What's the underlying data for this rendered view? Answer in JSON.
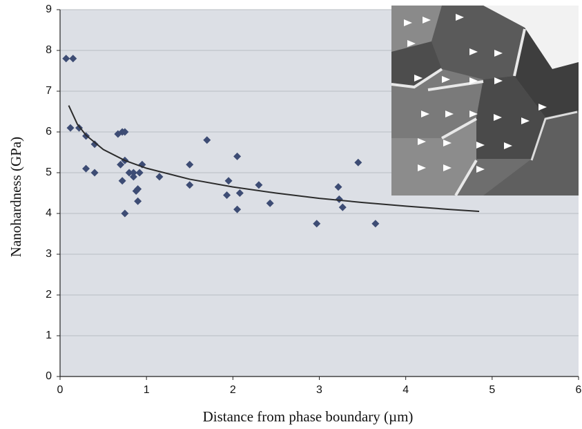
{
  "chart_data": {
    "type": "scatter",
    "x_label": "Distance from phase boundary (µm)",
    "y_label": "Nanohardness (GPa)",
    "xlim": [
      0,
      6
    ],
    "xticks": [
      0,
      1,
      2,
      3,
      4,
      5,
      6
    ],
    "ylim": [
      0,
      9
    ],
    "yticks": [
      0,
      1,
      2,
      3,
      4,
      5,
      6,
      7,
      8,
      9
    ],
    "grid": true,
    "series": [
      {
        "color": "#3d4c74",
        "marker": "diamond",
        "x": [
          0.07,
          0.15,
          0.12,
          0.22,
          0.3,
          0.3,
          0.4,
          0.4,
          0.67,
          0.72,
          0.75,
          0.7,
          0.75,
          0.72,
          0.75,
          0.8,
          0.85,
          0.85,
          0.88,
          0.9,
          0.9,
          0.92,
          0.95,
          1.15,
          1.5,
          1.5,
          1.7,
          1.93,
          1.95,
          2.05,
          2.05,
          2.08,
          2.3,
          2.43,
          2.97,
          3.22,
          3.23,
          3.27,
          3.45,
          3.65
        ],
        "values": [
          7.8,
          7.8,
          6.1,
          6.1,
          5.9,
          5.1,
          5.7,
          5.0,
          5.95,
          6.0,
          6.0,
          5.2,
          5.3,
          4.8,
          4.0,
          5.0,
          5.0,
          4.9,
          4.55,
          4.6,
          4.3,
          5.0,
          5.2,
          4.9,
          5.2,
          4.7,
          5.8,
          4.45,
          4.8,
          5.4,
          4.1,
          4.5,
          4.7,
          4.25,
          3.75,
          4.65,
          4.35,
          4.15,
          5.25,
          3.75
        ]
      },
      {
        "color": "#2b2b2b",
        "marker": "line",
        "x": [
          0.1,
          0.2,
          0.3,
          0.5,
          0.75,
          1,
          1.5,
          2,
          2.5,
          3,
          3.5,
          4,
          4.5,
          4.85
        ],
        "values": [
          6.65,
          6.19,
          5.92,
          5.57,
          5.3,
          5.11,
          4.84,
          4.65,
          4.5,
          4.37,
          4.27,
          4.18,
          4.1,
          4.05
        ]
      }
    ]
  }
}
